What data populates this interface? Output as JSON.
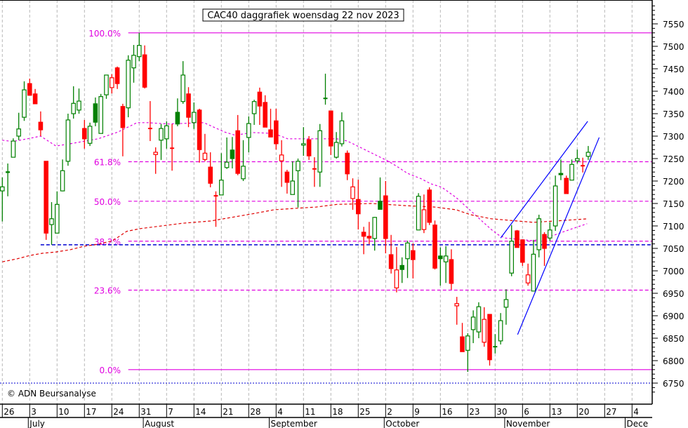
{
  "chart_data": {
    "type": "candlestick",
    "title": "CAC40 daggrafiek woensdag 22 nov 2023",
    "copyright": "© ADN Beursanalyse",
    "ylim": [
      6750,
      7550
    ],
    "y_ticks": [
      "7550",
      "7500",
      "7450",
      "7400",
      "7350",
      "7300",
      "7250",
      "7200",
      "7150",
      "7100",
      "7050",
      "7000",
      "6950",
      "6900",
      "6850",
      "6800",
      "6750"
    ],
    "week_labels": [
      "26",
      "3",
      "10",
      "17",
      "24",
      "31",
      "7",
      "14",
      "21",
      "28",
      "4",
      "11",
      "18",
      "25",
      "2",
      "9",
      "16",
      "23",
      "30",
      "6",
      "13",
      "20",
      "27",
      "4"
    ],
    "months": [
      {
        "label": "July",
        "start_index": 5
      },
      {
        "label": "August",
        "start_index": 26
      },
      {
        "label": "September",
        "start_index": 49
      },
      {
        "label": "October",
        "start_index": 70
      },
      {
        "label": "November",
        "start_index": 92
      },
      {
        "label": "Dece",
        "start_index": 114
      }
    ],
    "candles_ohlc": [
      [
        7178,
        7208,
        7110,
        7187
      ],
      [
        7218,
        7239,
        7166,
        7220
      ],
      [
        7253,
        7295,
        7253,
        7289
      ],
      [
        7300,
        7352,
        7291,
        7316
      ],
      [
        7342,
        7422,
        7334,
        7403
      ],
      [
        7417,
        7428,
        7391,
        7391
      ],
      [
        7394,
        7405,
        7372,
        7372
      ],
      [
        7331,
        7355,
        7300,
        7314
      ],
      [
        7244,
        7244,
        7069,
        7084
      ],
      [
        7103,
        7153,
        7058,
        7116
      ],
      [
        7084,
        7177,
        7084,
        7148
      ],
      [
        7178,
        7248,
        7177,
        7223
      ],
      [
        7244,
        7350,
        7234,
        7336
      ],
      [
        7350,
        7411,
        7339,
        7373
      ],
      [
        7358,
        7406,
        7350,
        7378
      ],
      [
        7317,
        7336,
        7272,
        7294
      ],
      [
        7284,
        7330,
        7278,
        7322
      ],
      [
        7372,
        7386,
        7322,
        7331
      ],
      [
        7306,
        7394,
        7306,
        7388
      ],
      [
        7392,
        7436,
        7383,
        7436
      ],
      [
        7408,
        7438,
        7395,
        7430
      ],
      [
        7452,
        7455,
        7405,
        7417
      ],
      [
        7366,
        7372,
        7255,
        7319
      ],
      [
        7363,
        7480,
        7342,
        7469
      ],
      [
        7452,
        7503,
        7419,
        7480
      ],
      [
        7477,
        7530,
        7467,
        7502
      ],
      [
        7481,
        7502,
        7406,
        7409
      ],
      [
        7317,
        7378,
        7289,
        7317
      ],
      [
        7259,
        7275,
        7216,
        7264
      ],
      [
        7291,
        7327,
        7247,
        7317
      ],
      [
        7294,
        7333,
        7272,
        7323
      ],
      [
        7273,
        7327,
        7223,
        7273
      ],
      [
        7353,
        7384,
        7322,
        7327
      ],
      [
        7377,
        7467,
        7372,
        7436
      ],
      [
        7394,
        7409,
        7320,
        7342
      ],
      [
        7330,
        7375,
        7316,
        7353
      ],
      [
        7358,
        7361,
        7241,
        7270
      ],
      [
        7248,
        7305,
        7244,
        7262
      ],
      [
        7231,
        7264,
        7186,
        7195
      ],
      [
        7167,
        7177,
        7098,
        7167
      ],
      [
        7169,
        7262,
        7169,
        7202
      ],
      [
        7230,
        7297,
        7227,
        7242
      ],
      [
        7269,
        7298,
        7228,
        7250
      ],
      [
        7312,
        7347,
        7213,
        7217
      ],
      [
        7205,
        7291,
        7200,
        7233
      ],
      [
        7297,
        7344,
        7264,
        7328
      ],
      [
        7350,
        7381,
        7325,
        7377
      ],
      [
        7398,
        7408,
        7325,
        7367
      ],
      [
        7375,
        7391,
        7320,
        7320
      ],
      [
        7314,
        7361,
        7298,
        7298
      ],
      [
        7334,
        7361,
        7270,
        7283
      ],
      [
        7245,
        7291,
        7187,
        7258
      ],
      [
        7220,
        7225,
        7172,
        7197
      ],
      [
        7170,
        7244,
        7170,
        7200
      ],
      [
        7223,
        7250,
        7141,
        7244
      ],
      [
        7280,
        7320,
        7256,
        7283
      ],
      [
        7292,
        7300,
        7247,
        7256
      ],
      [
        7227,
        7253,
        7187,
        7227
      ],
      [
        7220,
        7327,
        7187,
        7312
      ],
      [
        7384,
        7439,
        7370,
        7384
      ],
      [
        7356,
        7356,
        7258,
        7278
      ],
      [
        7253,
        7309,
        7250,
        7286
      ],
      [
        7283,
        7353,
        7277,
        7334
      ],
      [
        7262,
        7268,
        7202,
        7216
      ],
      [
        7161,
        7206,
        7136,
        7187
      ],
      [
        7159,
        7203,
        7092,
        7127
      ],
      [
        7086,
        7098,
        7037,
        7077
      ],
      [
        7077,
        7109,
        7059,
        7073
      ],
      [
        7072,
        7120,
        7045,
        7119
      ],
      [
        7155,
        7208,
        7137,
        7137
      ],
      [
        7167,
        7200,
        7039,
        7072
      ],
      [
        7036,
        7080,
        6994,
        7005
      ],
      [
        6962,
        7053,
        6952,
        7002
      ],
      [
        7012,
        7030,
        6973,
        7003
      ],
      [
        7027,
        7067,
        6984,
        7062
      ],
      [
        7045,
        7061,
        6983,
        7025
      ],
      [
        7091,
        7173,
        7091,
        7166
      ],
      [
        7092,
        7170,
        7084,
        7136
      ],
      [
        7180,
        7186,
        7102,
        7108
      ],
      [
        7102,
        7112,
        7003,
        7006
      ],
      [
        7033,
        7052,
        6967,
        7027
      ],
      [
        7020,
        7055,
        6973,
        7033
      ],
      [
        7025,
        7048,
        6958,
        6972
      ],
      [
        6922,
        6942,
        6880,
        6927
      ],
      [
        6853,
        6884,
        6820,
        6820
      ],
      [
        6823,
        6861,
        6775,
        6855
      ],
      [
        6869,
        6912,
        6839,
        6897
      ],
      [
        6864,
        6930,
        6850,
        6920
      ],
      [
        6841,
        6919,
        6831,
        6892
      ],
      [
        6903,
        6903,
        6789,
        6802
      ],
      [
        6831,
        6859,
        6816,
        6831
      ],
      [
        6844,
        6906,
        6836,
        6889
      ],
      [
        6919,
        6959,
        6880,
        6936
      ],
      [
        6995,
        7102,
        6988,
        7066
      ],
      [
        7089,
        7091,
        7052,
        7052
      ],
      [
        7069,
        7070,
        7011,
        7019
      ],
      [
        6973,
        7016,
        6967,
        6991
      ],
      [
        6955,
        7069,
        6955,
        7037
      ],
      [
        7047,
        7125,
        7030,
        7116
      ],
      [
        7081,
        7086,
        7011,
        7050
      ],
      [
        7073,
        7108,
        7067,
        7091
      ],
      [
        7100,
        7212,
        7089,
        7189
      ],
      [
        7217,
        7248,
        7202,
        7214
      ],
      [
        7206,
        7212,
        7172,
        7172
      ],
      [
        7202,
        7248,
        7202,
        7237
      ],
      [
        7245,
        7270,
        7239,
        7250
      ],
      [
        7234,
        7252,
        7219,
        7234
      ],
      [
        7255,
        7278,
        7247,
        7264
      ]
    ],
    "fibonacci": {
      "start_index": 23,
      "levels": [
        {
          "label": "100.0%",
          "price": 7530,
          "style": "solid"
        },
        {
          "label": "61.8%",
          "price": 7243,
          "style": "dashed"
        },
        {
          "label": "50.0%",
          "price": 7155,
          "style": "dashed"
        },
        {
          "label": "38.2%",
          "price": 7066,
          "style": "dashed"
        },
        {
          "label": "23.6%",
          "price": 6957,
          "style": "dashed"
        },
        {
          "label": "0.0%",
          "price": 6780,
          "style": "solid"
        }
      ]
    },
    "support_line": {
      "price": 7058,
      "start_index": 7
    },
    "ma_short": [
      [
        0,
        7291
      ],
      [
        1.9,
        7288
      ],
      [
        5,
        7295
      ],
      [
        7,
        7300
      ],
      [
        9.8,
        7278
      ],
      [
        12.4,
        7283
      ],
      [
        17.5,
        7294
      ],
      [
        21.1,
        7309
      ],
      [
        24.6,
        7330
      ],
      [
        26.5,
        7330
      ],
      [
        30.3,
        7327
      ],
      [
        36.8,
        7330
      ],
      [
        40.6,
        7309
      ],
      [
        42.5,
        7302
      ],
      [
        45.7,
        7308
      ],
      [
        49.6,
        7306
      ],
      [
        52.1,
        7294
      ],
      [
        61.1,
        7294
      ],
      [
        63,
        7289
      ],
      [
        70.5,
        7244
      ],
      [
        72,
        7233
      ],
      [
        74,
        7217
      ],
      [
        76.5,
        7205
      ],
      [
        78.2,
        7194
      ],
      [
        80.3,
        7186
      ],
      [
        82.9,
        7163
      ],
      [
        85.5,
        7134
      ],
      [
        89.3,
        7092
      ],
      [
        90.6,
        7080
      ],
      [
        91.9,
        7073
      ],
      [
        97,
        7067
      ],
      [
        100.9,
        7080
      ],
      [
        103.4,
        7091
      ],
      [
        106.8,
        7105
      ]
    ],
    "ma_long": [
      [
        0,
        7020
      ],
      [
        2.8,
        7027
      ],
      [
        5,
        7034
      ],
      [
        7.3,
        7039
      ],
      [
        9.8,
        7042
      ],
      [
        12.4,
        7047
      ],
      [
        15,
        7055
      ],
      [
        17.5,
        7059
      ],
      [
        20.1,
        7067
      ],
      [
        21.4,
        7077
      ],
      [
        22.7,
        7088
      ],
      [
        25.2,
        7094
      ],
      [
        29.1,
        7100
      ],
      [
        32.9,
        7106
      ],
      [
        38,
        7111
      ],
      [
        41.9,
        7119
      ],
      [
        45.7,
        7127
      ],
      [
        49.6,
        7136
      ],
      [
        53.4,
        7139
      ],
      [
        57.3,
        7142
      ],
      [
        61.1,
        7148
      ],
      [
        67.5,
        7150
      ],
      [
        73.9,
        7145
      ],
      [
        79,
        7142
      ],
      [
        82.9,
        7136
      ],
      [
        85.5,
        7125
      ],
      [
        89.3,
        7116
      ],
      [
        97,
        7108
      ],
      [
        100.9,
        7111
      ],
      [
        107,
        7116
      ]
    ],
    "trend_channel": [
      {
        "name": "upper",
        "from": [
          91,
          7073
        ],
        "to": [
          106.9,
          7333
        ]
      },
      {
        "name": "lower",
        "from": [
          94.1,
          6858
        ],
        "to": [
          109,
          7297
        ]
      }
    ],
    "colors": {
      "up": "#008000",
      "down": "#ff0000",
      "fib": "#e000e0",
      "ma_long": "#e00000",
      "support": "#0000d0",
      "channel": "#0000ff",
      "grid": "#b8b8b8"
    }
  }
}
